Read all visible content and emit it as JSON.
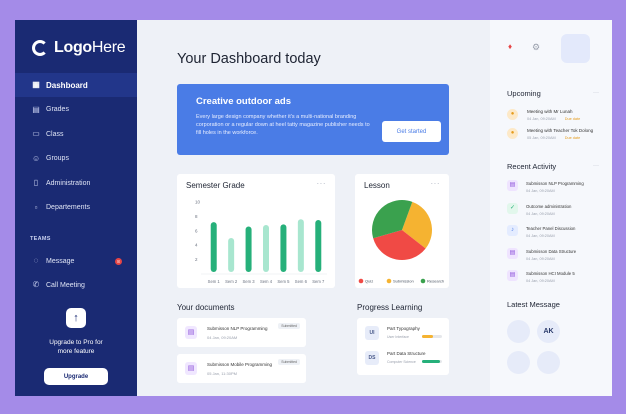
{
  "brand": {
    "logo_bold": "Logo",
    "logo_rest": "Here"
  },
  "nav": [
    {
      "label": "Dashboard",
      "icon": "grid-icon"
    },
    {
      "label": "Grades",
      "icon": "chart-icon"
    },
    {
      "label": "Class",
      "icon": "class-icon"
    },
    {
      "label": "Groups",
      "icon": "users-icon"
    },
    {
      "label": "Administration",
      "icon": "clipboard-icon"
    },
    {
      "label": "Departements",
      "icon": "file-icon"
    }
  ],
  "teams": {
    "label": "TEAMS",
    "message_label": "Message",
    "message_badge": "8",
    "call_label": "Call Meeting"
  },
  "upgrade": {
    "text_line1": "Upgrade to Pro for",
    "text_line2": "more feature",
    "button": "Upgrade"
  },
  "page_title": "Your Dashboard today",
  "banner": {
    "title": "Creative outdoor ads",
    "description": "Every large design company whether it's a multi-national branding corporation or a regular down at heel tatty magazine publisher needs to fill holes in the workforce.",
    "button": "Get started",
    "color": "#4a7ce6"
  },
  "semester": {
    "title": "Semester Grade",
    "chart_data": {
      "type": "bar",
      "categories": [
        "Sem 1",
        "Sem 2",
        "Sem 3",
        "Sem 4",
        "Sem 5",
        "Sem 6",
        "Sem 7"
      ],
      "series": [
        {
          "values": [
            7.2,
            5.8,
            6.6,
            8.2,
            6.9,
            9.2,
            7.5
          ]
        },
        {
          "values": [
            6.0,
            5.0,
            5.4,
            6.8,
            5.6,
            7.6,
            6.1
          ]
        }
      ],
      "ylim": [
        0,
        10
      ],
      "yticks": [
        2,
        4,
        6,
        8,
        10
      ],
      "colors": [
        "#26b07a",
        "#a8e6cf"
      ]
    }
  },
  "lesson": {
    "title": "Lesson",
    "chart_data": {
      "type": "pie",
      "categories": [
        "Quiz",
        "Submission",
        "Research"
      ],
      "values": [
        35,
        30,
        35
      ],
      "colors": [
        "#f04a45",
        "#f5b331",
        "#3aa14e"
      ]
    }
  },
  "documents": {
    "title": "Your documents",
    "items": [
      {
        "name": "Submisson NLP Programming",
        "date": "04 Jan, 09:20AM",
        "tag": "Submitted"
      },
      {
        "name": "Submisson Mobile Programming",
        "date": "05 Jan, 11:30PM",
        "tag": "Submitted"
      }
    ]
  },
  "progress": {
    "title": "Progress Learning",
    "items": [
      {
        "badge": "UI",
        "name": "Part Typography",
        "sub": "User Interface",
        "value": 0.55,
        "color": "#f5b331"
      },
      {
        "badge": "DS",
        "name": "Part Data Structure",
        "sub": "Computer Science",
        "value": 0.9,
        "color": "#26b07a"
      }
    ]
  },
  "upcoming": {
    "title": "Upcoming",
    "items": [
      {
        "name": "Meeting with Mr Lunah",
        "time": "04 Jan, 09:20AM",
        "status": "Due date"
      },
      {
        "name": "Meeting with Teacher Tok Dolong",
        "time": "05 Jan, 09:20AM",
        "status": "Due date"
      }
    ]
  },
  "activity": {
    "title": "Recent Activity",
    "items": [
      {
        "name": "Submisson NLP Programming",
        "date": "04 Jan, 09:20AM",
        "icon": "doc-icon",
        "bg": "#efe4ff",
        "fg": "#8a4fd9"
      },
      {
        "name": "Outcome administration",
        "date": "04 Jan, 09:20AM",
        "icon": "check-icon",
        "bg": "#e2f7ec",
        "fg": "#26b07a"
      },
      {
        "name": "Teacher Panel Discussion",
        "date": "04 Jan, 09:20AM",
        "icon": "mic-icon",
        "bg": "#e4ecff",
        "fg": "#4a7ce6"
      },
      {
        "name": "Submisson Data Structure",
        "date": "04 Jan, 09:20AM",
        "icon": "doc-icon",
        "bg": "#efe4ff",
        "fg": "#8a4fd9"
      },
      {
        "name": "Submisson HCI Module 5",
        "date": "04 Jan, 09:20AM",
        "icon": "doc-icon",
        "bg": "#efe4ff",
        "fg": "#8a4fd9"
      }
    ]
  },
  "latest": {
    "title": "Latest Message",
    "avatar_initials": "AK"
  },
  "icons": {
    "dots": "···"
  }
}
